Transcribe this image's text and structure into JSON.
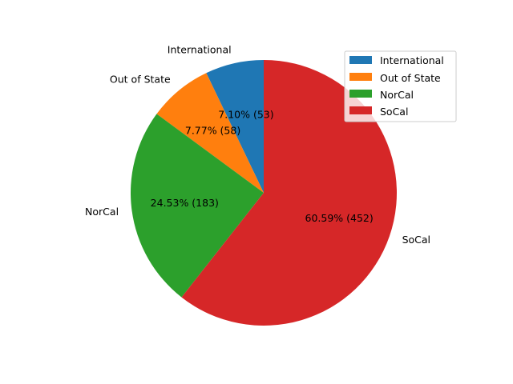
{
  "chart_data": {
    "type": "pie",
    "title": "",
    "categories": [
      "International",
      "Out of State",
      "NorCal",
      "SoCal"
    ],
    "values": [
      53,
      58,
      183,
      452
    ],
    "percent_labels": [
      "7.10%  (53)",
      "7.77%  (58)",
      "24.53%  (183)",
      "60.59%  (452)"
    ],
    "colors": [
      "#1f77b4",
      "#ff7f0e",
      "#2ca02c",
      "#d62728"
    ],
    "start_angle_deg": 90,
    "direction": "counterclockwise",
    "legend": {
      "placement": "upper right",
      "entries": [
        "International",
        "Out of State",
        "NorCal",
        "SoCal"
      ]
    }
  }
}
